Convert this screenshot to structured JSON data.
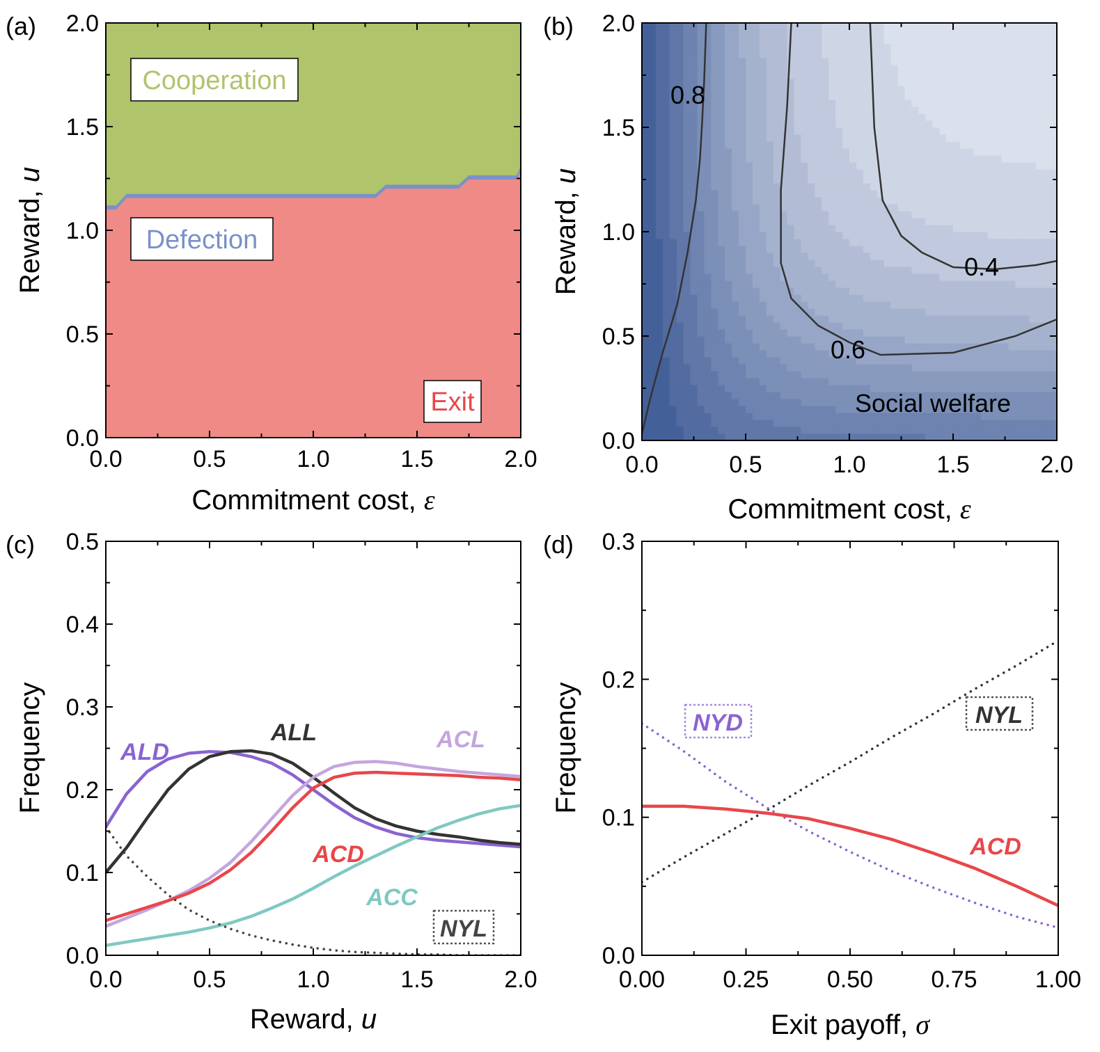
{
  "chart_data": [
    {
      "panel": "(a)",
      "type": "area",
      "xlabel": "Commitment cost, ",
      "xsymbol": "ε",
      "ylabel": "Reward, ",
      "ysymbol": "u",
      "xlim": [
        0,
        2
      ],
      "ylim": [
        0,
        2
      ],
      "xticks": [
        "0.0",
        "0.5",
        "1.0",
        "1.5",
        "2.0"
      ],
      "yticks": [
        "0.0",
        "0.5",
        "1.0",
        "1.5",
        "2.0"
      ],
      "regions": [
        {
          "name": "Cooperation",
          "color": "#afc46b",
          "text_color": "#afc46b"
        },
        {
          "name": "Defection",
          "color": "#7b90c8",
          "text_color": "#7b90c8"
        },
        {
          "name": "Exit",
          "color": "#f08a86",
          "text_color": "#e8474a"
        }
      ],
      "exit_boundary": {
        "x": [
          0,
          0.05,
          0.1,
          1.3,
          1.35,
          1.7,
          1.75,
          1.98,
          2.0
        ],
        "y": [
          1.1,
          1.1,
          1.155,
          1.155,
          1.2,
          1.2,
          1.245,
          1.245,
          1.29
        ]
      },
      "defection_band_width": 0.02
    },
    {
      "panel": "(b)",
      "type": "heatmap",
      "title": "Social welfare",
      "xlabel": "Commitment cost, ",
      "xsymbol": "ε",
      "ylabel": "Reward, ",
      "ysymbol": "u",
      "xlim": [
        0,
        2
      ],
      "ylim": [
        0,
        2
      ],
      "xticks": [
        "0.0",
        "0.5",
        "1.0",
        "1.5",
        "2.0"
      ],
      "yticks": [
        "0.0",
        "0.5",
        "1.0",
        "1.5",
        "2.0"
      ],
      "colormap": {
        "high": "#3f5b96",
        "low": "#ffffff"
      },
      "contours": [
        {
          "level": "0.8",
          "x": [
            0.0,
            0.04,
            0.1,
            0.17,
            0.22,
            0.26,
            0.28,
            0.29,
            0.3,
            0.31
          ],
          "y": [
            0.03,
            0.2,
            0.42,
            0.65,
            0.9,
            1.15,
            1.35,
            1.52,
            1.72,
            2.0
          ]
        },
        {
          "level": "0.6",
          "x": [
            0.72,
            0.7,
            0.67,
            0.67,
            0.72,
            0.85,
            1.0,
            1.15,
            1.5,
            1.8,
            2.0
          ],
          "y": [
            2.0,
            1.6,
            1.2,
            0.85,
            0.68,
            0.55,
            0.47,
            0.41,
            0.42,
            0.5,
            0.58
          ]
        },
        {
          "level": "0.4",
          "x": [
            1.1,
            1.12,
            1.16,
            1.25,
            1.35,
            1.5,
            1.7,
            1.9,
            2.0
          ],
          "y": [
            2.0,
            1.5,
            1.15,
            0.98,
            0.9,
            0.83,
            0.82,
            0.84,
            0.86
          ]
        }
      ]
    },
    {
      "panel": "(c)",
      "type": "line",
      "xlabel": "Reward, ",
      "xsymbol": "u",
      "ylabel": "Frequency",
      "xlim": [
        0,
        2
      ],
      "ylim": [
        0,
        0.5
      ],
      "xticks": [
        "0.0",
        "0.5",
        "1.0",
        "1.5",
        "2.0"
      ],
      "yticks": [
        "0.0",
        "0.1",
        "0.2",
        "0.3",
        "0.4",
        "0.5"
      ],
      "x": [
        0,
        0.1,
        0.2,
        0.3,
        0.4,
        0.5,
        0.6,
        0.7,
        0.8,
        0.9,
        1.0,
        1.1,
        1.2,
        1.3,
        1.4,
        1.5,
        1.6,
        1.7,
        1.8,
        1.9,
        2.0
      ],
      "series": [
        {
          "name": "ALD",
          "color": "#8a63d2",
          "dash": "solid",
          "values": [
            0.155,
            0.195,
            0.222,
            0.237,
            0.244,
            0.246,
            0.245,
            0.24,
            0.232,
            0.218,
            0.2,
            0.182,
            0.166,
            0.155,
            0.147,
            0.142,
            0.139,
            0.137,
            0.135,
            0.133,
            0.131
          ]
        },
        {
          "name": "ALL",
          "color": "#333333",
          "dash": "solid",
          "values": [
            0.1,
            0.13,
            0.166,
            0.2,
            0.225,
            0.24,
            0.246,
            0.247,
            0.243,
            0.232,
            0.215,
            0.196,
            0.178,
            0.165,
            0.156,
            0.15,
            0.146,
            0.143,
            0.139,
            0.136,
            0.134
          ]
        },
        {
          "name": "ACL",
          "color": "#c4a5de",
          "dash": "solid",
          "values": [
            0.035,
            0.045,
            0.055,
            0.066,
            0.078,
            0.093,
            0.112,
            0.137,
            0.165,
            0.193,
            0.215,
            0.228,
            0.233,
            0.234,
            0.232,
            0.228,
            0.225,
            0.222,
            0.22,
            0.218,
            0.216
          ]
        },
        {
          "name": "ACD",
          "color": "#e8474a",
          "dash": "solid",
          "values": [
            0.042,
            0.05,
            0.058,
            0.066,
            0.075,
            0.087,
            0.103,
            0.124,
            0.15,
            0.178,
            0.202,
            0.215,
            0.22,
            0.221,
            0.22,
            0.219,
            0.218,
            0.217,
            0.215,
            0.214,
            0.212
          ]
        },
        {
          "name": "ACC",
          "color": "#7fc9c2",
          "dash": "solid",
          "values": [
            0.012,
            0.016,
            0.02,
            0.024,
            0.028,
            0.033,
            0.039,
            0.047,
            0.057,
            0.068,
            0.081,
            0.095,
            0.108,
            0.12,
            0.132,
            0.143,
            0.154,
            0.163,
            0.171,
            0.177,
            0.181
          ]
        },
        {
          "name": "NYL",
          "color": "#444444",
          "dash": "dotted",
          "values": [
            0.155,
            0.12,
            0.095,
            0.073,
            0.055,
            0.042,
            0.032,
            0.024,
            0.018,
            0.013,
            0.009,
            0.006,
            0.004,
            0.003,
            0.002,
            0.001,
            0.001,
            0.0,
            0.0,
            0.0,
            0.0
          ]
        }
      ]
    },
    {
      "panel": "(d)",
      "type": "line",
      "xlabel": "Exit payoff, ",
      "xsymbol": "σ",
      "ylabel": "Frequency",
      "xlim": [
        0,
        1
      ],
      "ylim": [
        0,
        0.3
      ],
      "xticks": [
        "0.00",
        "0.25",
        "0.50",
        "0.75",
        "1.00"
      ],
      "yticks": [
        "0.0",
        "0.1",
        "0.2",
        "0.3"
      ],
      "x": [
        0.0,
        0.1,
        0.2,
        0.3,
        0.4,
        0.5,
        0.6,
        0.7,
        0.8,
        0.9,
        1.0
      ],
      "series": [
        {
          "name": "NYL",
          "color": "#333333",
          "dash": "dotted",
          "values": [
            0.053,
            0.071,
            0.088,
            0.105,
            0.123,
            0.14,
            0.158,
            0.175,
            0.193,
            0.21,
            0.228
          ]
        },
        {
          "name": "NYD",
          "color": "#8a63d2",
          "dash": "dotted",
          "values": [
            0.168,
            0.148,
            0.126,
            0.107,
            0.09,
            0.075,
            0.061,
            0.049,
            0.038,
            0.028,
            0.02
          ]
        },
        {
          "name": "ACD",
          "color": "#e8474a",
          "dash": "solid",
          "values": [
            0.108,
            0.108,
            0.106,
            0.103,
            0.099,
            0.092,
            0.084,
            0.074,
            0.063,
            0.05,
            0.036
          ]
        }
      ]
    }
  ]
}
